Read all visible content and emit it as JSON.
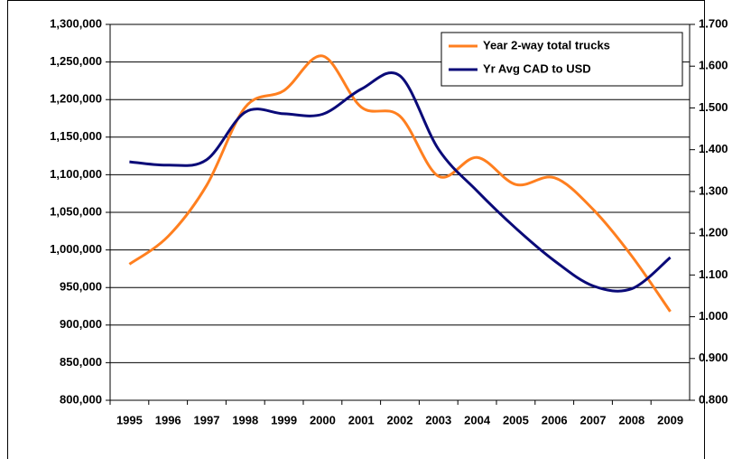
{
  "chart_data": {
    "type": "line",
    "categories": [
      "1995",
      "1996",
      "1997",
      "1998",
      "1999",
      "2000",
      "2001",
      "2002",
      "2003",
      "2004",
      "2005",
      "2006",
      "2007",
      "2008",
      "2009"
    ],
    "series": [
      {
        "name": "Year 2-way total trucks",
        "color": "#ff7f1f",
        "axis": "y",
        "values": [
          981000,
          1018000,
          1086000,
          1190000,
          1212000,
          1258000,
          1190000,
          1178000,
          1098000,
          1123000,
          1087000,
          1096000,
          1054000,
          992000,
          918000
        ]
      },
      {
        "name": "Yr Avg CAD to USD",
        "color": "#0a0a78",
        "axis": "y2",
        "values": [
          1.371,
          1.363,
          1.376,
          1.49,
          1.486,
          1.485,
          1.545,
          1.577,
          1.401,
          1.301,
          1.212,
          1.134,
          1.074,
          1.067,
          1.142
        ]
      }
    ],
    "ylim": [
      800000,
      1300000
    ],
    "yticks": [
      {
        "value": 800000,
        "label": "800,000"
      },
      {
        "value": 850000,
        "label": "850,000"
      },
      {
        "value": 900000,
        "label": "900,000"
      },
      {
        "value": 950000,
        "label": "950,000"
      },
      {
        "value": 1000000,
        "label": "1,000,000"
      },
      {
        "value": 1050000,
        "label": "1,050,000"
      },
      {
        "value": 1100000,
        "label": "1,100,000"
      },
      {
        "value": 1150000,
        "label": "1,150,000"
      },
      {
        "value": 1200000,
        "label": "1,200,000"
      },
      {
        "value": 1250000,
        "label": "1,250,000"
      },
      {
        "value": 1300000,
        "label": "1,300,000"
      }
    ],
    "y2lim": [
      0.8,
      1.7
    ],
    "y2ticks": [
      {
        "value": 0.8,
        "label": "0.800"
      },
      {
        "value": 0.9,
        "label": "0.900"
      },
      {
        "value": 1.0,
        "label": "1.000"
      },
      {
        "value": 1.1,
        "label": "1.100"
      },
      {
        "value": 1.2,
        "label": "1.200"
      },
      {
        "value": 1.3,
        "label": "1.300"
      },
      {
        "value": 1.4,
        "label": "1.400"
      },
      {
        "value": 1.5,
        "label": "1.500"
      },
      {
        "value": 1.6,
        "label": "1.600"
      },
      {
        "value": 1.7,
        "label": "1.700"
      }
    ],
    "grid": true,
    "legend": "top-right"
  }
}
